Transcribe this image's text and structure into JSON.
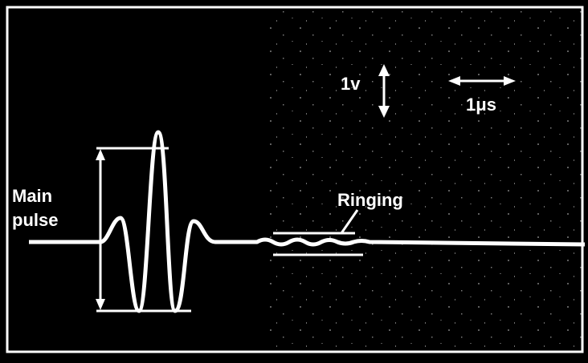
{
  "labels": {
    "main_pulse": [
      "Main",
      "pulse"
    ],
    "ringing": "Ringing",
    "voltage_scale": "1v",
    "time_scale": "1μs"
  }
}
